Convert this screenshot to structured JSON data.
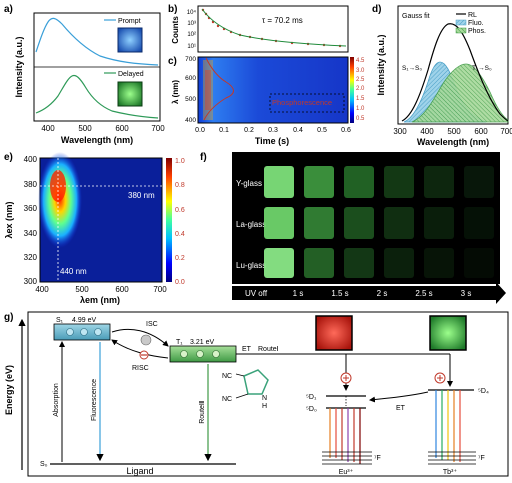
{
  "panels": {
    "a": {
      "label": "a)",
      "ylabel": "Intensity (a.u.)",
      "xlabel": "Wavelength (nm)",
      "xticks": [
        "400",
        "500",
        "600",
        "700"
      ],
      "legend_prompt": "Prompt",
      "legend_delayed": "Delayed",
      "prompt_color": "#3a9fd8",
      "delayed_color": "#2e9a58"
    },
    "b": {
      "label": "b)",
      "ylabel": "Counts",
      "yticks": [
        "10⁴",
        "10³",
        "10²",
        "10¹"
      ],
      "annotation": "τ = 70.2 ms"
    },
    "c": {
      "label": "c)",
      "ylabel": "λ (nm)",
      "xlabel": "Time (s)",
      "yticks": [
        "700",
        "600",
        "500",
        "400"
      ],
      "xticks": [
        "0.0",
        "0.1",
        "0.2",
        "0.3",
        "0.4",
        "0.5",
        "0.6"
      ],
      "cbar_ticks": [
        "4.5",
        "3.0",
        "2.5",
        "2.0",
        "1.5",
        "1.0",
        "0.5"
      ],
      "annotation": "Phosphorescence"
    },
    "d": {
      "label": "d)",
      "ylabel": "Intensity (a.u.)",
      "xlabel": "Wavelength (nm)",
      "xticks": [
        "300",
        "400",
        "500",
        "600",
        "700"
      ],
      "title": "Gauss fit",
      "legend": [
        "RL",
        "Fluo.",
        "Phos."
      ],
      "s1_label": "S₁→S₀",
      "t1_label": "T₁→S₀"
    },
    "e": {
      "label": "e)",
      "ylabel": "λex (nm)",
      "xlabel": "λem (nm)",
      "yticks": [
        "400",
        "380",
        "360",
        "340",
        "320",
        "300"
      ],
      "xticks": [
        "400",
        "500",
        "600",
        "700"
      ],
      "cbar_ticks": [
        "1.0",
        "0.8",
        "0.6",
        "0.4",
        "0.2",
        "0.0"
      ],
      "ann_380": "380 nm",
      "ann_440": "440 nm"
    },
    "f": {
      "label": "f)",
      "rows": [
        "Y-glass",
        "La-glass",
        "Lu-glass"
      ],
      "time_labels": [
        "UV off",
        "1 s",
        "1.5 s",
        "2 s",
        "2.5 s",
        "3 s"
      ]
    },
    "g": {
      "label": "g)",
      "yaxis": "Energy (eV)",
      "s1": "S₁",
      "s1_energy": "4.99 eV",
      "t1": "T₁",
      "t1_energy": "3.21 eV",
      "isc": "ISC",
      "risc": "RISC",
      "et": "ET",
      "route1": "RouteⅠ",
      "route3": "RouteⅢ",
      "absorption": "Absorption",
      "fluorescence": "Fluorescence",
      "s0": "S₀",
      "ligand": "Ligand",
      "et2": "ET",
      "eu_5d1": "⁵D₁",
      "eu_5d0": "⁵D₀",
      "eu_7fj": "⁷F",
      "eu_label": "Eu³⁺",
      "tb_5d4": "⁵D₄",
      "tb_7fj": "⁷F",
      "tb_label": "Tb³⁺",
      "nc1": "NC",
      "nc2": "NC",
      "nh": "N",
      "h": "H"
    }
  }
}
